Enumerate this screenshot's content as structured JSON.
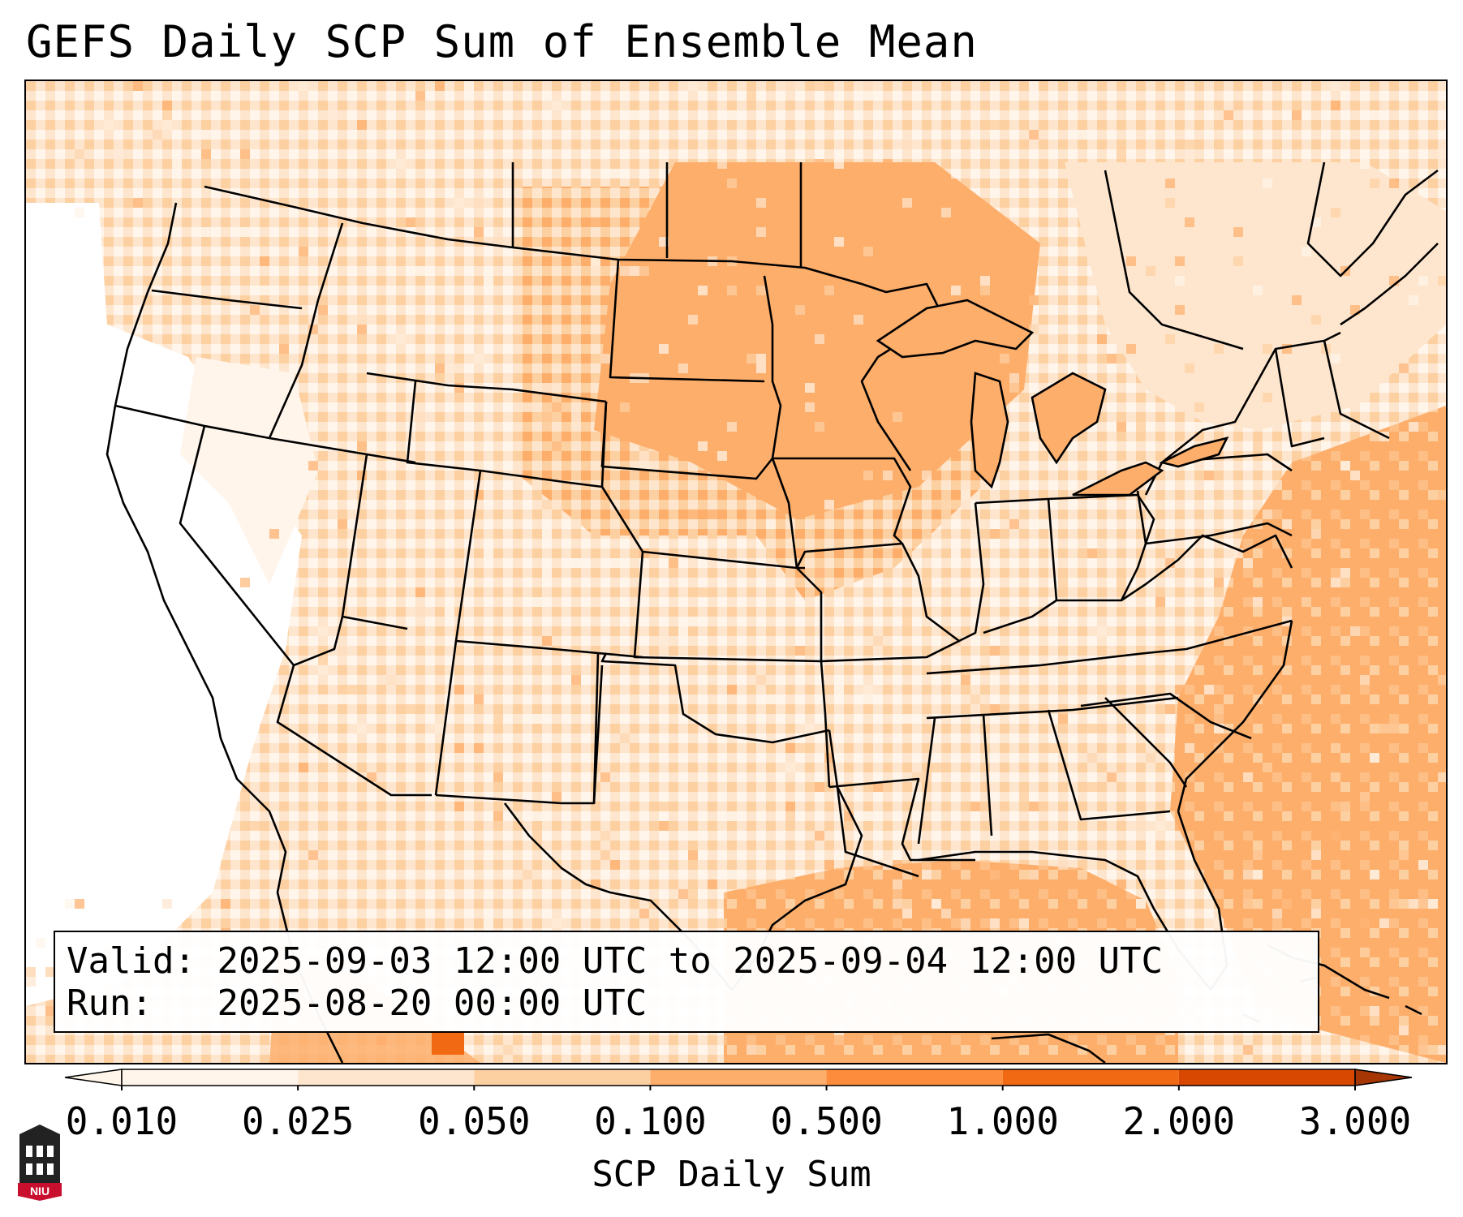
{
  "title": "GEFS Daily SCP Sum of Ensemble Mean",
  "info": {
    "valid_label": "Valid:",
    "valid_value": "2025-09-03 12:00 UTC to 2025-09-04 12:00 UTC",
    "run_label": "Run:",
    "run_value": "2025-08-20 00:00 UTC"
  },
  "colorbar": {
    "label": "SCP Daily Sum",
    "ticks": [
      "0.010",
      "0.025",
      "0.050",
      "0.100",
      "0.500",
      "1.000",
      "2.000",
      "3.000"
    ],
    "colors": [
      "#fff5eb",
      "#fee6ce",
      "#fdd0a2",
      "#fdae6b",
      "#fd8d3c",
      "#f16913",
      "#d94801",
      "#a63603"
    ],
    "extend": "both"
  },
  "map": {
    "projection": "Lambert Conformal",
    "region": "Continental United States",
    "field": "SCP daily sum",
    "ocean_color": "#fdae6b",
    "land_west_color": "#ffffff",
    "boundaries": [
      "coastlines",
      "state borders",
      "country borders",
      "great lakes"
    ]
  },
  "logo": {
    "text": "NIU",
    "color": "#c8102e"
  }
}
